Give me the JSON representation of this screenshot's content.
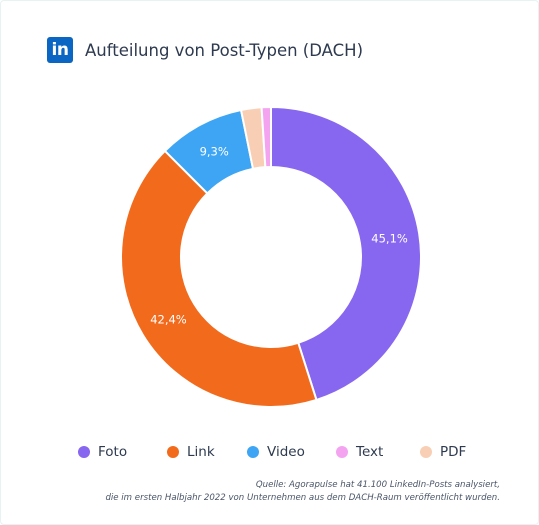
{
  "header": {
    "logo_text": "in",
    "logo_icon": "linkedin-logo-icon",
    "title": "Aufteilung von Post-Typen (DACH)"
  },
  "colors": {
    "brand": "#0a66c2",
    "background": "#ffffff"
  },
  "chart_data": {
    "type": "pie",
    "variant": "donut",
    "title": "Aufteilung von Post-Typen (DACH)",
    "legend_position": "bottom",
    "series": [
      {
        "name": "Foto",
        "value": 45.1,
        "label": "45,1%",
        "color": "#8766f0"
      },
      {
        "name": "Link",
        "value": 42.4,
        "label": "42,4%",
        "color": "#f26b1d"
      },
      {
        "name": "Video",
        "value": 9.3,
        "label": "9,3%",
        "color": "#3da5f4"
      },
      {
        "name": "PDF",
        "value": 2.2,
        "label": "",
        "color": "#f8cfb4"
      },
      {
        "name": "Text",
        "value": 1.0,
        "label": "",
        "color": "#f4a3f1"
      }
    ]
  },
  "legend": {
    "items": [
      {
        "label": "Foto",
        "color": "#8766f0"
      },
      {
        "label": "Link",
        "color": "#f26b1d"
      },
      {
        "label": "Video",
        "color": "#3da5f4"
      },
      {
        "label": "Text",
        "color": "#f4a3f1"
      },
      {
        "label": "PDF",
        "color": "#f8cfb4"
      }
    ]
  },
  "source": {
    "line1": "Quelle: Agorapulse hat 41.100 LinkedIn-Posts analysiert,",
    "line2": "die im ersten Halbjahr 2022 von Unternehmen aus dem DACH-Raum veröffentlicht wurden."
  }
}
